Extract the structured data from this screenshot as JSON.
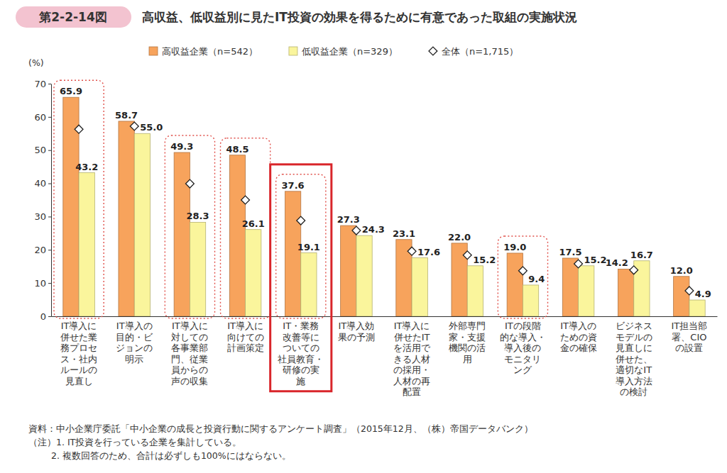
{
  "chart_data": {
    "type": "bar",
    "figure_label": "第2-2-14図",
    "title": "高収益、低収益別に見たIT投資の効果を得るために有意であった取組の実施状況",
    "y_label": "(%)",
    "categories": [
      "IT導入に併せた業務プロセス・社内ルールの見直し",
      "IT導入の目的・ビジョンの明示",
      "IT導入に対しての各事業部門、従業員からの声の収集",
      "IT導入に向けての計画策定",
      "IT・業務改善等についての社員教育・研修の実施",
      "IT導入効果の予測",
      "IT導入に併せたITを活用できる人材の採用・人材の再配置",
      "外部専門家・支援機関の活用",
      "ITの段階的な導入・導入後のモニタリング",
      "IT導入のための資金の確保",
      "ビジネスモデルの見直しに併せた、適切なIT導入方法の検討",
      "IT担当部署、CIOの設置"
    ],
    "series": [
      {
        "name": "高収益企業（n=542）",
        "type": "bar",
        "color": "#f7a35c",
        "data_labels": true,
        "values": [
          65.9,
          58.7,
          49.3,
          48.5,
          37.6,
          27.3,
          23.1,
          22.0,
          19.0,
          17.5,
          14.2,
          12.0
        ],
        "value_labels": [
          "65.9",
          "58.7",
          "49.3",
          "48.5",
          "37.6",
          "27.3",
          "23.1",
          "22.0",
          "19.0",
          "17.5",
          "14.2",
          "12.0"
        ]
      },
      {
        "name": "低収益企業（n=329）",
        "type": "bar",
        "color": "#faf59c",
        "data_labels": true,
        "values": [
          43.2,
          55.0,
          28.3,
          26.1,
          19.1,
          24.3,
          17.6,
          15.2,
          9.4,
          15.2,
          16.7,
          4.9
        ],
        "value_labels": [
          "43.2",
          "55.0",
          "28.3",
          "26.1",
          "19.1",
          "24.3",
          "17.6",
          "15.2",
          "9.4",
          "15.2",
          "16.7",
          "4.9"
        ]
      },
      {
        "name": "全体（n=1,715）",
        "type": "scatter",
        "marker": "diamond",
        "color": "#ffffff",
        "data_labels": false,
        "values": [
          56.3,
          57.2,
          39.9,
          35.0,
          28.8,
          25.8,
          19.6,
          18.4,
          13.7,
          15.8,
          13.9,
          7.7
        ]
      }
    ],
    "ylim": [
      0,
      70
    ],
    "yticks": [
      0,
      10,
      20,
      30,
      40,
      50,
      60,
      70
    ],
    "grid": false,
    "legend": "top",
    "source": "資料：中小企業庁委託「中小企業の成長と投資行動に関するアンケート調査」（2015年12月、（株）帝国データバンク）",
    "notes": [
      "（注）1. IT投資を行っている企業を集計している。",
      "2. 複数回答のため、合計は必ずしも100%にはならない。"
    ]
  }
}
